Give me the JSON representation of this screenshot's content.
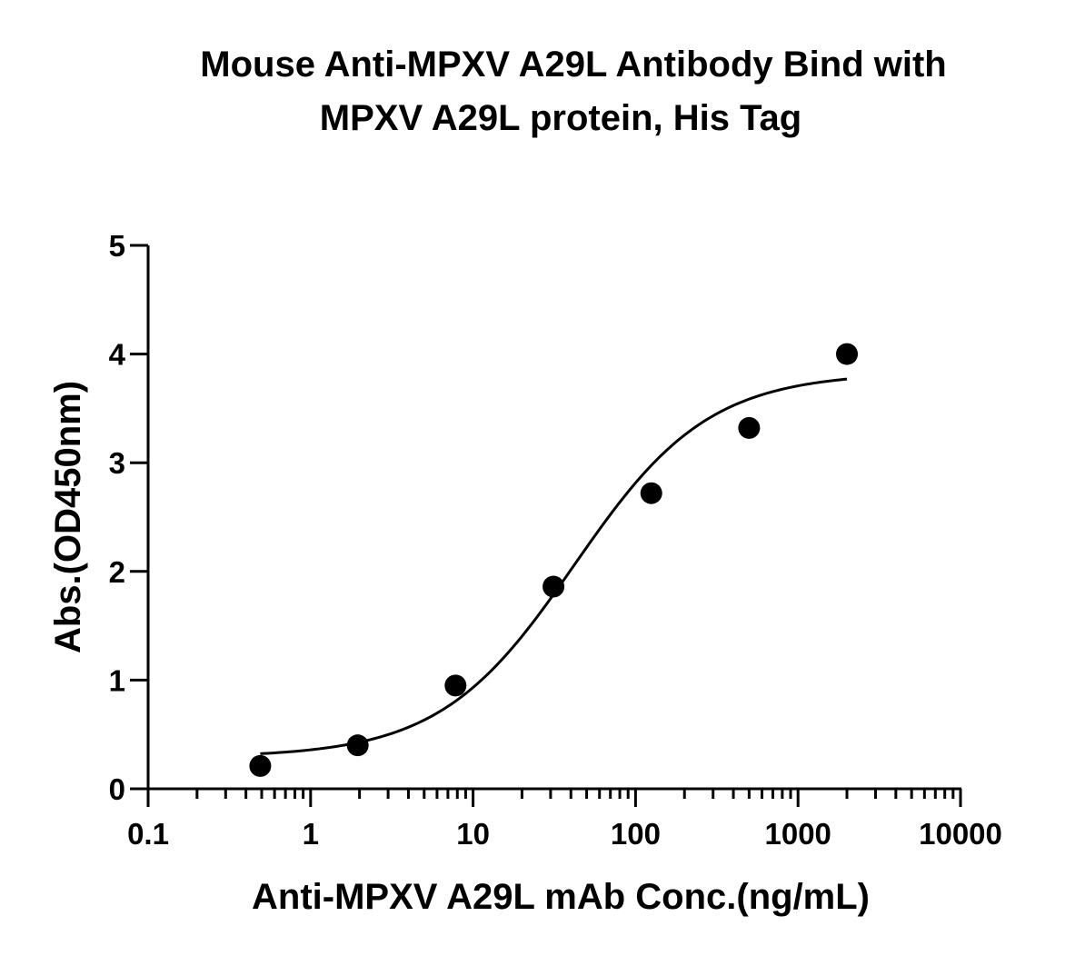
{
  "chart_data": {
    "type": "scatter",
    "title_line1": "Mouse Anti-MPXV A29L  Antibody Bind with",
    "title_line2": "MPXV A29L  protein,  His Tag",
    "xlabel": "Anti-MPXV A29L mAb Conc.(ng/mL)",
    "ylabel": "Abs.(OD450nm)",
    "x_scale": "log",
    "xlim": [
      0.1,
      10000
    ],
    "ylim": [
      0,
      5
    ],
    "x_ticks": [
      0.1,
      1,
      10,
      100,
      1000,
      10000
    ],
    "x_tick_labels": [
      "0.1",
      "1",
      "10",
      "100",
      "1000",
      "10000"
    ],
    "y_ticks": [
      0,
      1,
      2,
      3,
      4,
      5
    ],
    "y_tick_labels": [
      "0",
      "1",
      "2",
      "3",
      "4",
      "5"
    ],
    "grid": false,
    "legend": "none",
    "series": [
      {
        "points": [
          {
            "x": 0.49,
            "y": 0.21
          },
          {
            "x": 1.95,
            "y": 0.4
          },
          {
            "x": 7.8,
            "y": 0.95
          },
          {
            "x": 31.25,
            "y": 1.86
          },
          {
            "x": 125,
            "y": 2.72
          },
          {
            "x": 500,
            "y": 3.32
          },
          {
            "x": 2000,
            "y": 4.0
          }
        ],
        "fit": {
          "type": "4PL",
          "bottom": 0.29,
          "top": 3.83,
          "ec50": 42,
          "hill": 1.05,
          "x_range": [
            0.49,
            2000
          ]
        },
        "color": "#000000"
      }
    ]
  }
}
